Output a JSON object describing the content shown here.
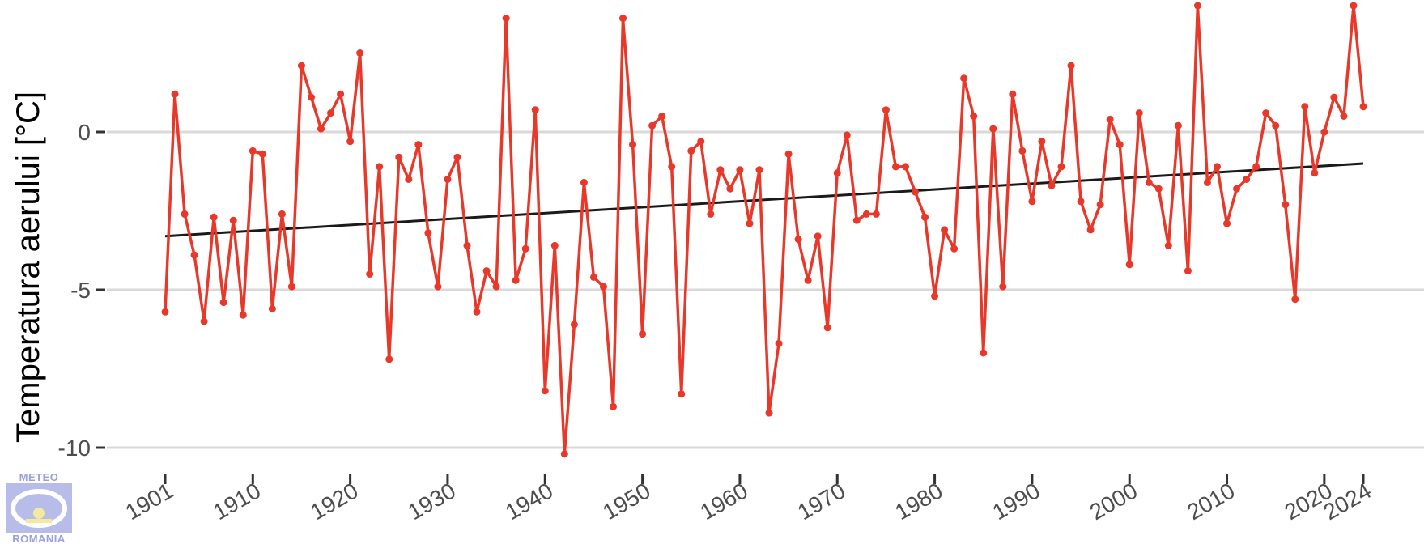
{
  "chart_data": {
    "type": "line",
    "title": "",
    "xlabel": "",
    "ylabel": "Temperatura aerului [°C]",
    "xlim": [
      1896,
      2029
    ],
    "ylim": [
      -10.3,
      4.1
    ],
    "grid": "horizontal",
    "x_ticks": [
      1901,
      1910,
      1920,
      1930,
      1940,
      1950,
      1960,
      1970,
      1980,
      1990,
      2000,
      2010,
      2020,
      2024
    ],
    "y_ticks": [
      0,
      -5,
      -10
    ],
    "series": [
      {
        "type": "line",
        "color": "#e8382a",
        "x": [
          1901,
          1902,
          1903,
          1904,
          1905,
          1906,
          1907,
          1908,
          1909,
          1910,
          1911,
          1912,
          1913,
          1914,
          1915,
          1916,
          1917,
          1918,
          1919,
          1920,
          1921,
          1922,
          1923,
          1924,
          1925,
          1926,
          1927,
          1928,
          1929,
          1930,
          1931,
          1932,
          1933,
          1934,
          1935,
          1936,
          1937,
          1938,
          1939,
          1940,
          1941,
          1942,
          1943,
          1944,
          1945,
          1946,
          1947,
          1948,
          1949,
          1950,
          1951,
          1952,
          1953,
          1954,
          1955,
          1956,
          1957,
          1958,
          1959,
          1960,
          1961,
          1962,
          1963,
          1964,
          1965,
          1966,
          1967,
          1968,
          1969,
          1970,
          1971,
          1972,
          1973,
          1974,
          1975,
          1976,
          1977,
          1978,
          1979,
          1980,
          1981,
          1982,
          1983,
          1984,
          1985,
          1986,
          1987,
          1988,
          1989,
          1990,
          1991,
          1992,
          1993,
          1994,
          1995,
          1996,
          1997,
          1998,
          1999,
          2000,
          2001,
          2002,
          2003,
          2004,
          2005,
          2006,
          2007,
          2008,
          2009,
          2010,
          2011,
          2012,
          2013,
          2014,
          2015,
          2016,
          2017,
          2018,
          2019,
          2020,
          2021,
          2022,
          2023,
          2024
        ],
        "y": [
          -5.7,
          1.2,
          -2.6,
          -3.9,
          -6.0,
          -2.7,
          -5.4,
          -2.8,
          -5.8,
          -0.6,
          -0.7,
          -5.6,
          -2.6,
          -4.9,
          2.1,
          1.1,
          0.1,
          0.6,
          1.2,
          -0.3,
          2.5,
          -4.5,
          -1.1,
          -7.2,
          -0.8,
          -1.5,
          -0.4,
          -3.2,
          -4.9,
          -1.5,
          -0.8,
          -3.6,
          -5.7,
          -4.4,
          -4.9,
          3.6,
          -4.7,
          -3.7,
          0.7,
          -8.2,
          -3.6,
          -10.2,
          -6.1,
          -1.6,
          -4.6,
          -4.9,
          -8.7,
          3.6,
          -0.4,
          -6.4,
          0.2,
          0.5,
          -1.1,
          -8.3,
          -0.6,
          -0.3,
          -2.6,
          -1.2,
          -1.8,
          -1.2,
          -2.9,
          -1.2,
          -8.9,
          -6.7,
          -0.7,
          -3.4,
          -4.7,
          -3.3,
          -6.2,
          -1.3,
          -0.1,
          -2.8,
          -2.6,
          -2.6,
          0.7,
          -1.1,
          -1.1,
          -1.9,
          -2.7,
          -5.2,
          -3.1,
          -3.7,
          1.7,
          0.5,
          -7.0,
          0.1,
          -4.9,
          1.2,
          -0.6,
          -2.2,
          -0.3,
          -1.7,
          -1.1,
          2.1,
          -2.2,
          -3.1,
          -2.3,
          0.4,
          -0.4,
          -4.2,
          0.6,
          -1.6,
          -1.8,
          -3.6,
          0.2,
          -4.4,
          4.0,
          -1.6,
          -1.1,
          -2.9,
          -1.8,
          -1.5,
          -1.1,
          0.6,
          0.2,
          -2.3,
          -5.3,
          0.8,
          -1.3,
          0.0,
          1.1,
          0.5,
          4.0,
          0.8
        ]
      },
      {
        "type": "trend",
        "color": "#1a1a1a",
        "x": [
          1901,
          2024
        ],
        "y": [
          -3.3,
          -1.0
        ]
      }
    ]
  },
  "logo": {
    "top_text": "METEO",
    "bottom_text": "ROMANIA"
  }
}
